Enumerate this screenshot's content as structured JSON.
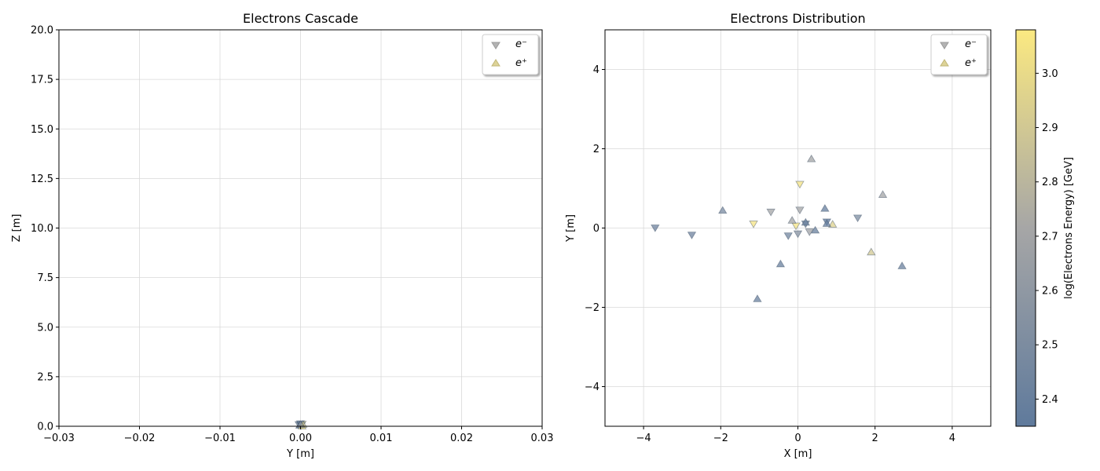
{
  "colors": {
    "low": "#5f7a9c",
    "mid": "#a6a6a6",
    "high": "#fbe981"
  },
  "marker_icons": {
    "electron": "triangle-down-icon",
    "positron": "triangle-up-icon"
  },
  "chart_data": [
    {
      "type": "scatter",
      "title": "Electrons Cascade",
      "xlabel": "Y [m]",
      "ylabel": "Z [m]",
      "xlim": [
        -0.03,
        0.03
      ],
      "ylim": [
        0,
        20
      ],
      "xticks": [
        "−0.03",
        "−0.02",
        "−0.01",
        "0.00",
        "0.01",
        "0.02",
        "0.03"
      ],
      "yticks": [
        "0.0",
        "2.5",
        "5.0",
        "7.5",
        "10.0",
        "12.5",
        "15.0",
        "17.5",
        "20.0"
      ],
      "grid": true,
      "legend": {
        "position": "top-right",
        "entries": [
          "e⁻",
          "e⁺"
        ]
      },
      "series": [
        {
          "name": "e⁻",
          "marker": "triangle-down",
          "points": [
            {
              "x": 0.0,
              "y": 0.05,
              "e": 2.35
            },
            {
              "x": 0.0002,
              "y": 0.1,
              "e": 3.0
            },
            {
              "x": -0.0002,
              "y": 0.08,
              "e": 2.5
            },
            {
              "x": 0.0001,
              "y": 0.03,
              "e": 2.7
            },
            {
              "x": 0.0,
              "y": 0.12,
              "e": 2.4
            }
          ]
        },
        {
          "name": "e⁺",
          "marker": "triangle-up",
          "points": [
            {
              "x": 0.0003,
              "y": 0.1,
              "e": 2.9
            },
            {
              "x": -0.0001,
              "y": 0.06,
              "e": 2.45
            },
            {
              "x": 0.0002,
              "y": 0.02,
              "e": 3.05
            },
            {
              "x": 0.0,
              "y": 0.09,
              "e": 2.6
            }
          ]
        }
      ]
    },
    {
      "type": "scatter",
      "title": "Electrons Distribution",
      "xlabel": "X [m]",
      "ylabel": "Y [m]",
      "xlim": [
        -5,
        5
      ],
      "ylim": [
        -5,
        5
      ],
      "xticks": [
        "−4",
        "−2",
        "0",
        "2",
        "4"
      ],
      "yticks": [
        "−4",
        "−2",
        "0",
        "2",
        "4"
      ],
      "grid": true,
      "legend": {
        "position": "top-right",
        "entries": [
          "e⁻",
          "e⁺"
        ]
      },
      "colorbar": {
        "label": "log(Electrons Energy) [GeV]",
        "range": [
          2.35,
          3.08
        ],
        "ticks": [
          "2.4",
          "2.5",
          "2.6",
          "2.7",
          "2.8",
          "2.9",
          "3.0"
        ]
      },
      "series": [
        {
          "name": "e⁻",
          "marker": "triangle-down",
          "points": [
            {
              "x": -3.7,
              "y": 0.0,
              "e": 2.42
            },
            {
              "x": -2.75,
              "y": -0.18,
              "e": 2.42
            },
            {
              "x": -1.15,
              "y": 0.1,
              "e": 3.05
            },
            {
              "x": -0.7,
              "y": 0.4,
              "e": 2.7
            },
            {
              "x": 0.05,
              "y": 0.45,
              "e": 2.7
            },
            {
              "x": 0.05,
              "y": 1.1,
              "e": 3.05
            },
            {
              "x": -0.05,
              "y": 0.05,
              "e": 3.05
            },
            {
              "x": 0.2,
              "y": 0.1,
              "e": 2.45
            },
            {
              "x": 0.3,
              "y": -0.1,
              "e": 2.68
            },
            {
              "x": -0.25,
              "y": -0.2,
              "e": 2.45
            },
            {
              "x": 0.0,
              "y": -0.15,
              "e": 2.55
            },
            {
              "x": 0.75,
              "y": 0.15,
              "e": 2.35
            },
            {
              "x": 1.55,
              "y": 0.25,
              "e": 2.5
            }
          ]
        },
        {
          "name": "e⁺",
          "marker": "triangle-up",
          "points": [
            {
              "x": -1.95,
              "y": 0.45,
              "e": 2.48
            },
            {
              "x": -0.15,
              "y": 0.2,
              "e": 2.7
            },
            {
              "x": 0.35,
              "y": 1.75,
              "e": 2.7
            },
            {
              "x": 0.2,
              "y": 0.15,
              "e": 2.4
            },
            {
              "x": 0.7,
              "y": 0.5,
              "e": 2.38
            },
            {
              "x": 0.45,
              "y": -0.05,
              "e": 2.4
            },
            {
              "x": 0.9,
              "y": 0.1,
              "e": 2.95
            },
            {
              "x": 2.2,
              "y": 0.85,
              "e": 2.7
            },
            {
              "x": 1.9,
              "y": -0.6,
              "e": 2.9
            },
            {
              "x": 2.7,
              "y": -0.95,
              "e": 2.4
            },
            {
              "x": -0.45,
              "y": -0.9,
              "e": 2.4
            },
            {
              "x": -1.05,
              "y": -1.78,
              "e": 2.4
            },
            {
              "x": 0.75,
              "y": 0.12,
              "e": 2.38
            }
          ]
        }
      ]
    }
  ]
}
